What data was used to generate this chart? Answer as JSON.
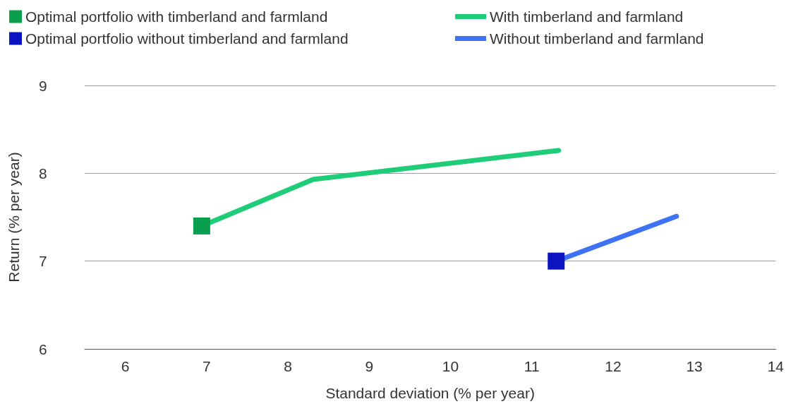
{
  "chart_data": {
    "type": "line",
    "xlabel": "Standard deviation (% per year)",
    "ylabel": "Return (% per year)",
    "xlim": [
      5.5,
      14
    ],
    "xticks": [
      6,
      7,
      8,
      9,
      10,
      11,
      12,
      13,
      14
    ],
    "ylim": [
      6,
      9
    ],
    "yticks": [
      6,
      7,
      8,
      9
    ],
    "grid": "y",
    "legend": "top",
    "series": [
      {
        "name": "Optimal portfolio with timberland and farmland",
        "type": "scatter",
        "marker": "square",
        "color": "#0a9e4f",
        "x": [
          6.94
        ],
        "values": [
          7.4
        ]
      },
      {
        "name": "Optimal portfolio without timberland and farmland",
        "type": "scatter",
        "marker": "square",
        "color": "#0a14c0",
        "x": [
          11.3
        ],
        "values": [
          7.0
        ]
      },
      {
        "name": "With timberland and farmland",
        "marker": "none",
        "color": "#1fcc78",
        "x": [
          6.94,
          8.31,
          11.33
        ],
        "values": [
          7.4,
          7.93,
          8.26
        ]
      },
      {
        "name": "Without timberland and farmland",
        "marker": "none",
        "color": "#3d72f5",
        "x": [
          11.3,
          12.78
        ],
        "values": [
          7.0,
          7.51
        ]
      }
    ]
  }
}
